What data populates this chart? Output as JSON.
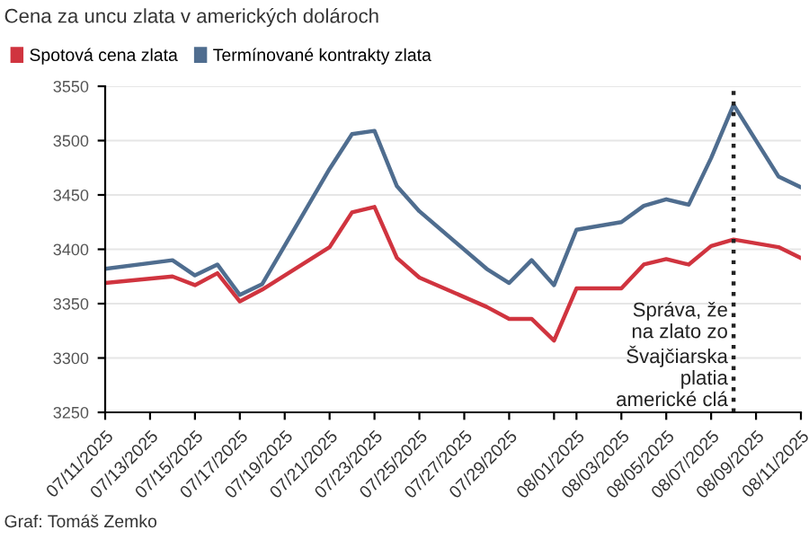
{
  "chart_data": {
    "type": "line",
    "title": "Cena za uncu zlata v amerických dolároch",
    "x": [
      "2025-07-11",
      "2025-07-14",
      "2025-07-15",
      "2025-07-16",
      "2025-07-17",
      "2025-07-18",
      "2025-07-21",
      "2025-07-22",
      "2025-07-23",
      "2025-07-24",
      "2025-07-25",
      "2025-07-28",
      "2025-07-29",
      "2025-07-30",
      "2025-07-31",
      "2025-08-01",
      "2025-08-03",
      "2025-08-04",
      "2025-08-05",
      "2025-08-06",
      "2025-08-07",
      "2025-08-08",
      "2025-08-10",
      "2025-08-11"
    ],
    "series": [
      {
        "name": "Spotová cena zlata",
        "color": "#d0343f",
        "values": [
          3369,
          3375,
          3367,
          3378,
          3352,
          3363,
          3402,
          3434,
          3439,
          3392,
          3374,
          3347,
          3336,
          3336,
          3316,
          3364,
          3364,
          3386,
          3391,
          3386,
          3403,
          3409,
          3402,
          3392
        ]
      },
      {
        "name": "Termínované kontrakty zlata",
        "color": "#4f6d8f",
        "values": [
          3382,
          3390,
          3376,
          3386,
          3358,
          3368,
          3474,
          3506,
          3509,
          3458,
          3435,
          3382,
          3369,
          3390,
          3367,
          3418,
          3425,
          3440,
          3446,
          3441,
          3484,
          3533,
          3467,
          3457
        ]
      }
    ],
    "xlim": [
      "2025-07-11",
      "2025-08-11"
    ],
    "xticks": [
      {
        "value": "2025-07-11",
        "label": "07/11/2025"
      },
      {
        "value": "2025-07-13",
        "label": "07/13/2025"
      },
      {
        "value": "2025-07-15",
        "label": "07/15/2025"
      },
      {
        "value": "2025-07-17",
        "label": "07/17/2025"
      },
      {
        "value": "2025-07-19",
        "label": "07/19/2025"
      },
      {
        "value": "2025-07-21",
        "label": "07/21/2025"
      },
      {
        "value": "2025-07-23",
        "label": "07/23/2025"
      },
      {
        "value": "2025-07-25",
        "label": "07/25/2025"
      },
      {
        "value": "2025-07-27",
        "label": "07/27/2025"
      },
      {
        "value": "2025-07-29",
        "label": "07/29/2025"
      },
      {
        "value": "2025-07-31",
        "label": null
      },
      {
        "value": "2025-08-01",
        "label": "08/01/2025"
      },
      {
        "value": "2025-08-03",
        "label": "08/03/2025"
      },
      {
        "value": "2025-08-05",
        "label": "08/05/2025"
      },
      {
        "value": "2025-08-07",
        "label": "08/07/2025"
      },
      {
        "value": "2025-08-09",
        "label": "08/09/2025"
      },
      {
        "value": "2025-08-11",
        "label": "08/11/2025"
      }
    ],
    "ylim": [
      3250,
      3550
    ],
    "yticks": [
      3250,
      3300,
      3350,
      3400,
      3450,
      3500,
      3550
    ],
    "grid": "y",
    "legend": "top left",
    "marker": "none",
    "line_style": "solid",
    "ref_lines": [
      {
        "axis": "x",
        "value": "2025-08-08",
        "label": "Správa, že\nna zlato zo\nŠvajčiarska\nplatia\namerické clá",
        "color": "#222222",
        "line_style": "dotted"
      }
    ],
    "annotations": [
      "Graf: Tomáš Zemko"
    ]
  }
}
